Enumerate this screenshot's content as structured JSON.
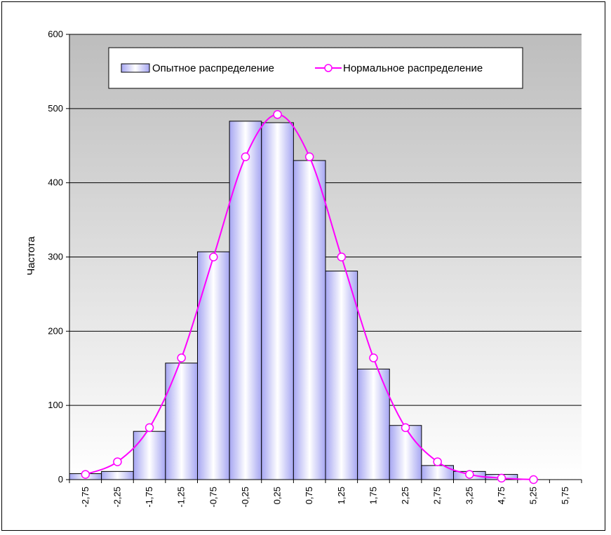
{
  "chart_data": {
    "type": "bar",
    "ylabel": "Частота",
    "xlabel": "",
    "ylim": [
      0,
      600
    ],
    "y_ticks": [
      0,
      100,
      200,
      300,
      400,
      500,
      600
    ],
    "categories": [
      "-2,75",
      "-2,25",
      "-1,75",
      "-1,25",
      "-0,75",
      "-0,25",
      "0,25",
      "0,75",
      "1,25",
      "1,75",
      "2,25",
      "2,75",
      "3,25",
      "4,75",
      "5,25",
      "5,75"
    ],
    "series": [
      {
        "name": "Опытное распределение",
        "type": "bar",
        "values": [
          8,
          11,
          65,
          157,
          307,
          483,
          481,
          430,
          281,
          149,
          73,
          19,
          11,
          7,
          0,
          0
        ]
      },
      {
        "name": "Нормальное распределение",
        "type": "line",
        "values": [
          7,
          24,
          70,
          164,
          300,
          435,
          492,
          435,
          300,
          164,
          70,
          24,
          7,
          2,
          0,
          null
        ]
      }
    ],
    "grid": true,
    "legend_position": "top",
    "colors": {
      "bar_edge": "#000000",
      "bar_fill_light": "#ffffff",
      "bar_fill_dark": "#a6a6f2",
      "line": "#ff00ff",
      "marker_fill": "#ffffff",
      "plot_bg_top": "#bdbdbd",
      "plot_bg_bottom": "#ffffff"
    }
  }
}
